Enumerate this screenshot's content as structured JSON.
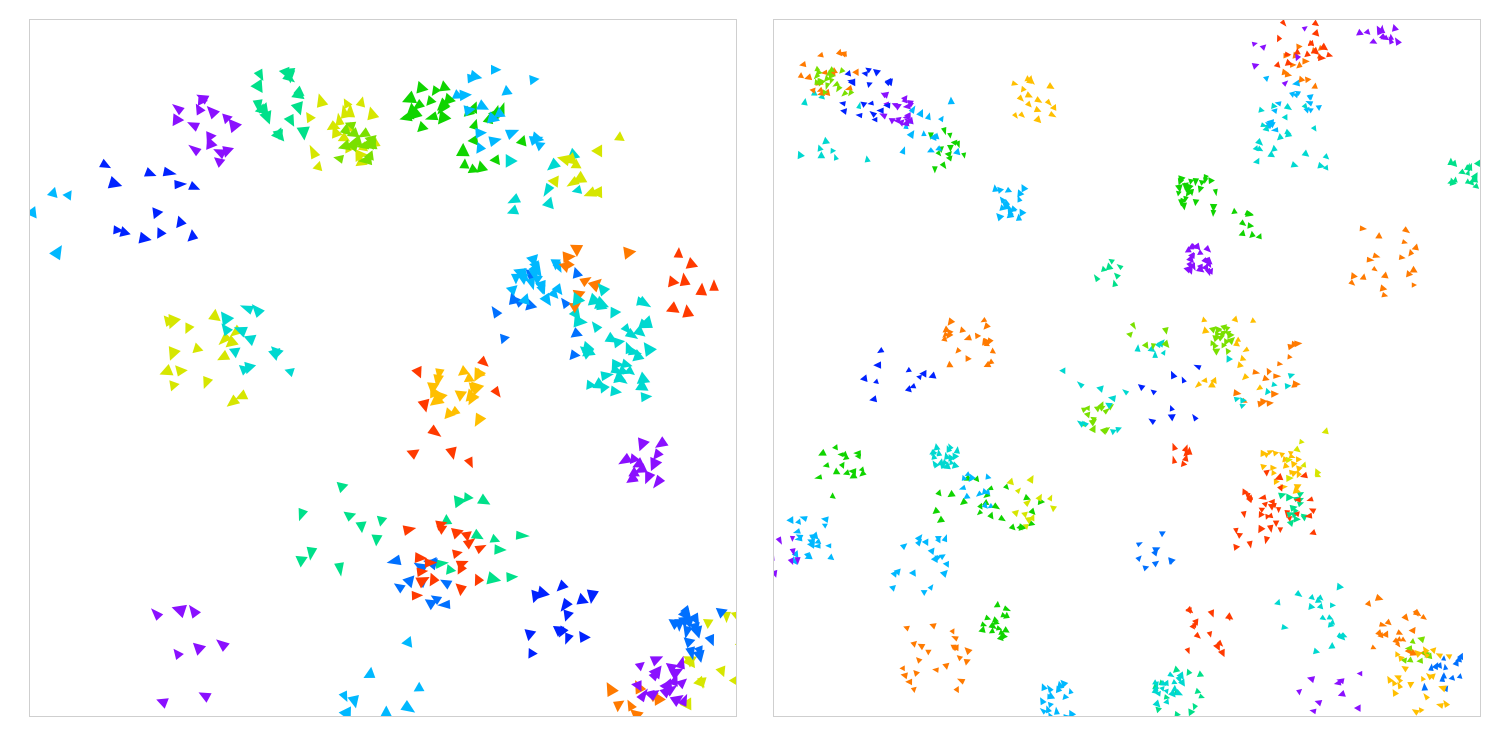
{
  "scene": {
    "panels": [
      {
        "id": "left",
        "description_name": "flocking-simulation-large-agents",
        "seed": 7,
        "colors": [
          "#ff3a00",
          "#ff7a00",
          "#ffbf00",
          "#d6e600",
          "#7ae000",
          "#10d400",
          "#00e08a",
          "#00d8d0",
          "#00b8ff",
          "#0070ff",
          "#0022ff",
          "#8a10ff"
        ]
      },
      {
        "id": "right",
        "description_name": "flocking-simulation-small-agents",
        "seed": 21,
        "colors": [
          "#ff3a00",
          "#ff7a00",
          "#ffbf00",
          "#d6e600",
          "#7ae000",
          "#10d400",
          "#00e08a",
          "#00d8d0",
          "#00b8ff",
          "#0070ff",
          "#0022ff",
          "#8a10ff"
        ]
      }
    ]
  }
}
